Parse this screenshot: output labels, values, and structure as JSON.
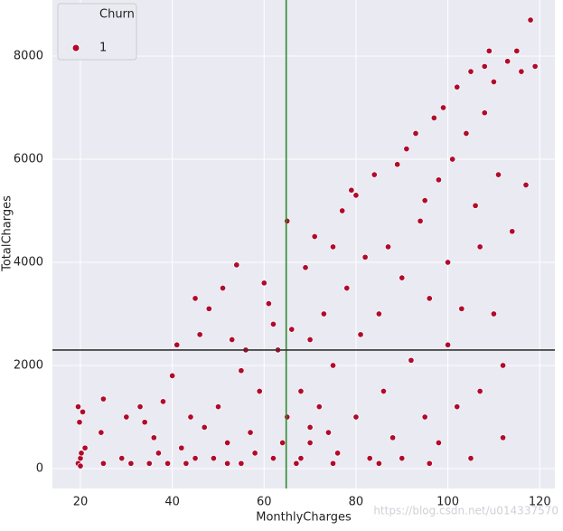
{
  "chart_data": {
    "type": "scatter",
    "x_label": "MonthlyCharges",
    "y_label": "TotalCharges",
    "legend_title": "Churn",
    "legend_position": "upper left",
    "watermark": "https://blog.csdn.net/u014337570",
    "xlim": [
      13.9,
      123.3
    ],
    "ylim": [
      -386,
      9088
    ],
    "xticks": [
      20,
      40,
      60,
      80,
      100,
      120
    ],
    "yticks": [
      0,
      2000,
      4000,
      6000,
      8000
    ],
    "grid": true,
    "reference_lines": [
      {
        "axis": "x",
        "value": 64.8,
        "color": "#2e8b2e"
      },
      {
        "axis": "y",
        "value": 2300,
        "color": "#333333"
      }
    ],
    "series": [
      {
        "name": "1",
        "color": "#b00b2c",
        "x": [
          19.5,
          20,
          20.5,
          19.8,
          21,
          20,
          25,
          24.5,
          25,
          19.5,
          20.2,
          29,
          30,
          31,
          33,
          34,
          35,
          36,
          38,
          40,
          39,
          42,
          41,
          44,
          45,
          45,
          46,
          48,
          49,
          50,
          51,
          52,
          53,
          54,
          55,
          55,
          56,
          57,
          58,
          60,
          59,
          61,
          62,
          63,
          64,
          65,
          65,
          66,
          67,
          68,
          68,
          69,
          70,
          70,
          71,
          72,
          73,
          74,
          75,
          75,
          76,
          77,
          78,
          79,
          80,
          80,
          81,
          82,
          83,
          84,
          85,
          86,
          87,
          88,
          89,
          90,
          90,
          91,
          92,
          93,
          94,
          95,
          95,
          96,
          97,
          98,
          98,
          99,
          100,
          100,
          101,
          102,
          102,
          103,
          104,
          105,
          105,
          106,
          107,
          108,
          108,
          109,
          110,
          110,
          111,
          112,
          113,
          114,
          115,
          116,
          117,
          118,
          119,
          112,
          107,
          96,
          85,
          75,
          70,
          62,
          52,
          47,
          43,
          37
        ],
        "values": [
          100,
          200,
          1100,
          900,
          400,
          50,
          100,
          700,
          1350,
          1200,
          300,
          200,
          1000,
          100,
          1200,
          900,
          100,
          600,
          1300,
          1800,
          100,
          400,
          2400,
          1000,
          200,
          3300,
          2600,
          3100,
          200,
          1200,
          3500,
          500,
          2500,
          3950,
          100,
          1900,
          2300,
          700,
          300,
          3600,
          1500,
          3200,
          2800,
          2300,
          500,
          1000,
          4800,
          2700,
          100,
          200,
          1500,
          3900,
          2500,
          500,
          4500,
          1200,
          3000,
          700,
          4300,
          2000,
          300,
          5000,
          3500,
          5400,
          1000,
          5300,
          2600,
          4100,
          200,
          5700,
          3000,
          1500,
          4300,
          600,
          5900,
          3700,
          200,
          6200,
          2100,
          6500,
          4800,
          1000,
          5200,
          3300,
          6800,
          500,
          5600,
          7000,
          2400,
          4000,
          6000,
          7400,
          1200,
          3100,
          6500,
          7700,
          200,
          5100,
          4300,
          6900,
          7800,
          8100,
          7500,
          3000,
          5700,
          2000,
          7900,
          4600,
          8100,
          7700,
          5500,
          8700,
          7800,
          600,
          1500,
          100,
          100,
          100,
          800,
          200,
          100,
          800,
          100,
          300
        ]
      }
    ]
  }
}
